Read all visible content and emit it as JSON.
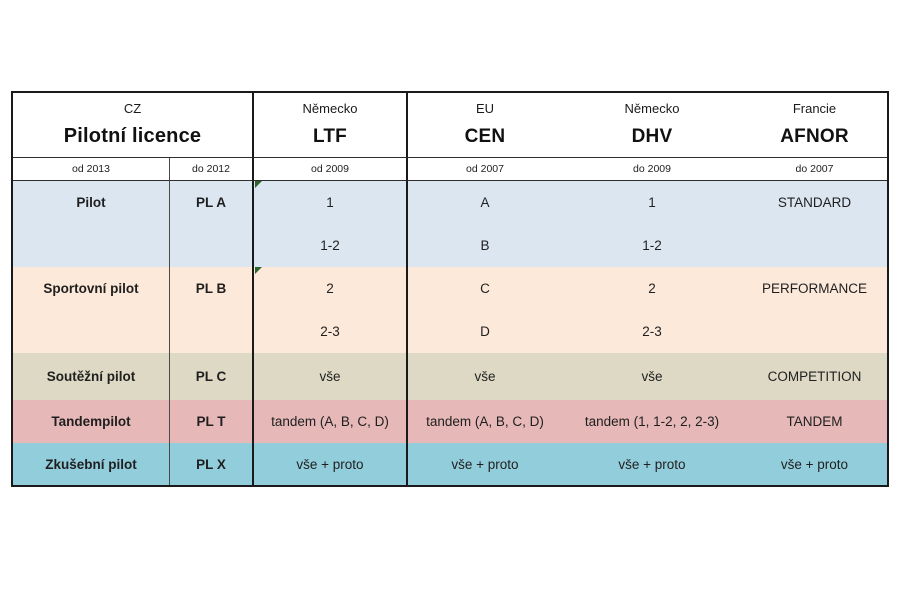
{
  "colors": {
    "row_pilot": "#dce6f1",
    "row_sport": "#fde9d9",
    "row_comp": "#ddd9c4",
    "row_tandem": "#e6b8b7",
    "row_test": "#92cddc",
    "border_thick": "#1a1a1a",
    "error_triangle_green": "#2d632d"
  },
  "table": {
    "header": {
      "cz": {
        "country": "CZ",
        "name": "Pilotní licence"
      },
      "ltf": {
        "country": "Německo",
        "name": "LTF"
      },
      "cen": {
        "country": "EU",
        "name": "CEN"
      },
      "dhv": {
        "country": "Německo",
        "name": "DHV"
      },
      "afnor": {
        "country": "Francie",
        "name": "AFNOR"
      }
    },
    "subheader": {
      "cz_new": "od 2013",
      "cz_old": "do 2012",
      "ltf": "od 2009",
      "cen": "od 2007",
      "dhv": "do 2009",
      "afnor": "do 2007"
    },
    "rows": [
      {
        "label": "Pilot",
        "license": "PL A",
        "ltf1": "1",
        "ltf2": "1-2",
        "cen1": "A",
        "cen2": "B",
        "dhv1": "1",
        "dhv2": "1-2",
        "afnor": "STANDARD",
        "color": "#dce6f1"
      },
      {
        "label": "Sportovní pilot",
        "license": "PL B",
        "ltf1": "2",
        "ltf2": "2-3",
        "cen1": "C",
        "cen2": "D",
        "dhv1": "2",
        "dhv2": "2-3",
        "afnor": "PERFORMANCE",
        "color": "#fde9d9"
      },
      {
        "label": "Soutěžní pilot",
        "license": "PL C",
        "ltf": "vše",
        "cen": "vše",
        "dhv": "vše",
        "afnor": "COMPETITION",
        "color": "#ddd9c4"
      },
      {
        "label": "Tandempilot",
        "license": "PL T",
        "ltf": "tandem (A, B, C, D)",
        "cen": "tandem (A, B, C, D)",
        "dhv": "tandem (1, 1-2, 2, 2-3)",
        "afnor": "TANDEM",
        "color": "#e6b8b7"
      },
      {
        "label": "Zkušební pilot",
        "license": "PL X",
        "ltf": "vše + proto",
        "cen": "vše + proto",
        "dhv": "vše + proto",
        "afnor": "vše + proto",
        "color": "#92cddc"
      }
    ]
  },
  "chart_data": {
    "type": "table",
    "columns": [
      "CZ Pilotní licence (od 2013)",
      "CZ (do 2012)",
      "Německo LTF (od 2009)",
      "EU CEN (od 2007)",
      "Německo DHV (do 2009)",
      "Francie AFNOR (do 2007)"
    ],
    "rows": [
      [
        "Pilot",
        "PL A",
        "1 / 1-2",
        "A / B",
        "1 / 1-2",
        "STANDARD"
      ],
      [
        "Sportovní pilot",
        "PL B",
        "2 / 2-3",
        "C / D",
        "2 / 2-3",
        "PERFORMANCE"
      ],
      [
        "Soutěžní pilot",
        "PL C",
        "vše",
        "vše",
        "vše",
        "COMPETITION"
      ],
      [
        "Tandempilot",
        "PL T",
        "tandem (A, B, C, D)",
        "tandem (A, B, C, D)",
        "tandem (1, 1-2, 2, 2-3)",
        "TANDEM"
      ],
      [
        "Zkušební pilot",
        "PL X",
        "vše + proto",
        "vše + proto",
        "vše + proto",
        "vše + proto"
      ]
    ]
  }
}
